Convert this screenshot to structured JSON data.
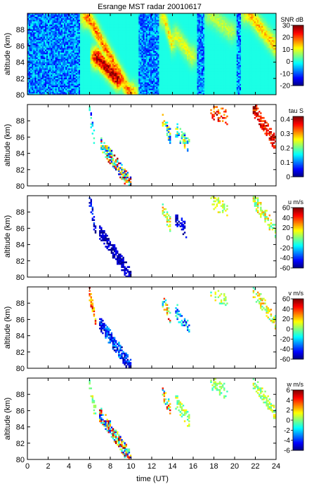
{
  "chart_data": [
    {
      "type": "heatmap",
      "title": "Esrange MST radar 20010617",
      "ylabel": "altitude (km)",
      "colorbar_label": "SNR dB",
      "ylim": [
        80,
        90
      ],
      "yticks": [
        80,
        82,
        84,
        86,
        88
      ],
      "xlim": [
        0,
        24
      ],
      "clim": [
        -20,
        30
      ],
      "cticks": [
        -20,
        -10,
        0,
        10,
        20,
        30
      ],
      "background": "noise",
      "features": [
        {
          "t0": 5.9,
          "t1": 9.9,
          "z_start": 89.5,
          "z_end": 80.2,
          "width_h": 0.8,
          "peak": 18
        },
        {
          "t0": 6.8,
          "t1": 8.6,
          "z_start": 84.6,
          "z_end": 82.0,
          "width_h": 0.7,
          "peak": 28
        },
        {
          "t0": 13.2,
          "t1": 13.9,
          "z_start": 89.5,
          "z_end": 86.5,
          "width_h": 0.5,
          "peak": 12
        },
        {
          "t0": 14.4,
          "t1": 15.8,
          "z_start": 87.2,
          "z_end": 84.8,
          "width_h": 0.55,
          "peak": 10
        },
        {
          "t0": 17.7,
          "t1": 19.6,
          "z_start": 89.8,
          "z_end": 87.8,
          "width_h": 0.6,
          "peak": 8
        },
        {
          "t0": 21.4,
          "t1": 23.9,
          "z_start": 90.0,
          "z_end": 86.0,
          "width_h": 0.8,
          "peak": 14
        }
      ]
    },
    {
      "type": "heatmap",
      "ylabel": "altitude (km)",
      "colorbar_label": "tau S",
      "ylim": [
        80,
        90
      ],
      "yticks": [
        80,
        82,
        84,
        86,
        88
      ],
      "xlim": [
        0,
        24
      ],
      "clim": [
        0,
        0.42
      ],
      "cticks": [
        0,
        0.1,
        0.2,
        0.3,
        0.4
      ],
      "features": [
        {
          "t0": 6.0,
          "t1": 6.4,
          "z_start": 89.2,
          "z_end": 86.2,
          "width_h": 0.35,
          "density": 0.55,
          "lo": 0.05,
          "hi": 0.2
        },
        {
          "t0": 7.1,
          "t1": 9.9,
          "z_start": 85.2,
          "z_end": 80.3,
          "width_h": 0.65,
          "density": 0.8,
          "lo": 0.02,
          "hi": 0.42
        },
        {
          "t0": 13.1,
          "t1": 13.8,
          "z_start": 88.0,
          "z_end": 86.0,
          "width_h": 0.4,
          "density": 0.55,
          "lo": 0.05,
          "hi": 0.3
        },
        {
          "t0": 14.4,
          "t1": 15.6,
          "z_start": 86.8,
          "z_end": 84.8,
          "width_h": 0.4,
          "density": 0.5,
          "lo": 0.05,
          "hi": 0.3
        },
        {
          "t0": 17.7,
          "t1": 19.3,
          "z_start": 89.3,
          "z_end": 88.3,
          "width_h": 0.5,
          "density": 0.35,
          "lo": 0.28,
          "hi": 0.42
        },
        {
          "t0": 21.8,
          "t1": 23.9,
          "z_start": 89.6,
          "z_end": 85.3,
          "width_h": 0.7,
          "density": 0.75,
          "lo": 0.32,
          "hi": 0.42
        }
      ]
    },
    {
      "type": "heatmap",
      "ylabel": "altitude (km)",
      "colorbar_label": "u m/s",
      "ylim": [
        80,
        90
      ],
      "yticks": [
        80,
        82,
        84,
        86,
        88
      ],
      "xlim": [
        0,
        24
      ],
      "clim": [
        -60,
        60
      ],
      "cticks": [
        -60,
        -40,
        -20,
        0,
        20,
        40,
        60
      ],
      "features": [
        {
          "t0": 6.1,
          "t1": 6.5,
          "z_start": 89.2,
          "z_end": 86.0,
          "width_h": 0.35,
          "density": 0.55,
          "lo": -60,
          "hi": -35
        },
        {
          "t0": 7.0,
          "t1": 9.9,
          "z_start": 85.6,
          "z_end": 80.3,
          "width_h": 0.75,
          "density": 0.85,
          "lo": -60,
          "hi": -45
        },
        {
          "t0": 13.1,
          "t1": 13.8,
          "z_start": 88.2,
          "z_end": 86.5,
          "width_h": 0.4,
          "density": 0.55,
          "lo": -10,
          "hi": 30
        },
        {
          "t0": 14.4,
          "t1": 15.3,
          "z_start": 87.0,
          "z_end": 85.8,
          "width_h": 0.4,
          "density": 0.55,
          "lo": -60,
          "hi": -40
        },
        {
          "t0": 17.7,
          "t1": 19.3,
          "z_start": 89.3,
          "z_end": 88.3,
          "width_h": 0.5,
          "density": 0.35,
          "lo": -5,
          "hi": 20
        },
        {
          "t0": 21.8,
          "t1": 23.9,
          "z_start": 89.6,
          "z_end": 85.8,
          "width_h": 0.7,
          "density": 0.55,
          "lo": -10,
          "hi": 30
        }
      ]
    },
    {
      "type": "heatmap",
      "ylabel": "altitude (km)",
      "colorbar_label": "v m/s",
      "ylim": [
        80,
        90
      ],
      "yticks": [
        80,
        82,
        84,
        86,
        88
      ],
      "xlim": [
        0,
        24
      ],
      "clim": [
        -60,
        60
      ],
      "cticks": [
        -60,
        -40,
        -20,
        0,
        20,
        40,
        60
      ],
      "features": [
        {
          "t0": 6.0,
          "t1": 6.5,
          "z_start": 89.3,
          "z_end": 86.0,
          "width_h": 0.35,
          "density": 0.6,
          "lo": 10,
          "hi": 55
        },
        {
          "t0": 7.0,
          "t1": 9.9,
          "z_start": 85.6,
          "z_end": 80.3,
          "width_h": 0.75,
          "density": 0.8,
          "lo": -60,
          "hi": -20
        },
        {
          "t0": 13.1,
          "t1": 13.8,
          "z_start": 88.2,
          "z_end": 86.2,
          "width_h": 0.4,
          "density": 0.55,
          "lo": -30,
          "hi": 50
        },
        {
          "t0": 14.4,
          "t1": 15.6,
          "z_start": 87.0,
          "z_end": 84.8,
          "width_h": 0.4,
          "density": 0.5,
          "lo": -50,
          "hi": 0
        },
        {
          "t0": 17.7,
          "t1": 19.3,
          "z_start": 89.3,
          "z_end": 88.3,
          "width_h": 0.5,
          "density": 0.35,
          "lo": -10,
          "hi": 20
        },
        {
          "t0": 21.8,
          "t1": 23.9,
          "z_start": 89.6,
          "z_end": 85.8,
          "width_h": 0.7,
          "density": 0.55,
          "lo": -10,
          "hi": 30
        }
      ]
    },
    {
      "type": "heatmap",
      "ylabel": "altitude (km)",
      "colorbar_label": "w m/s",
      "xlabel": "time (UT)",
      "ylim": [
        80,
        90
      ],
      "yticks": [
        80,
        82,
        84,
        86,
        88
      ],
      "xlim": [
        0,
        24
      ],
      "xticks": [
        0,
        2,
        4,
        6,
        8,
        10,
        12,
        14,
        16,
        18,
        20,
        22,
        24
      ],
      "clim": [
        -6,
        6
      ],
      "cticks": [
        -6,
        -4,
        -2,
        0,
        2,
        4,
        6
      ],
      "features": [
        {
          "t0": 6.0,
          "t1": 6.5,
          "z_start": 89.3,
          "z_end": 86.0,
          "width_h": 0.35,
          "density": 0.6,
          "lo": -1,
          "hi": 2
        },
        {
          "t0": 7.0,
          "t1": 9.9,
          "z_start": 85.6,
          "z_end": 80.3,
          "width_h": 0.75,
          "density": 0.8,
          "lo": -5,
          "hi": 6
        },
        {
          "t0": 13.1,
          "t1": 13.8,
          "z_start": 88.2,
          "z_end": 86.2,
          "width_h": 0.4,
          "density": 0.55,
          "lo": -3,
          "hi": 5
        },
        {
          "t0": 14.4,
          "t1": 15.6,
          "z_start": 87.0,
          "z_end": 84.8,
          "width_h": 0.4,
          "density": 0.5,
          "lo": -1,
          "hi": 2
        },
        {
          "t0": 17.7,
          "t1": 19.3,
          "z_start": 89.3,
          "z_end": 88.3,
          "width_h": 0.5,
          "density": 0.35,
          "lo": -1,
          "hi": 1
        },
        {
          "t0": 21.8,
          "t1": 23.9,
          "z_start": 89.6,
          "z_end": 85.8,
          "width_h": 0.7,
          "density": 0.55,
          "lo": -1,
          "hi": 2
        }
      ]
    }
  ]
}
